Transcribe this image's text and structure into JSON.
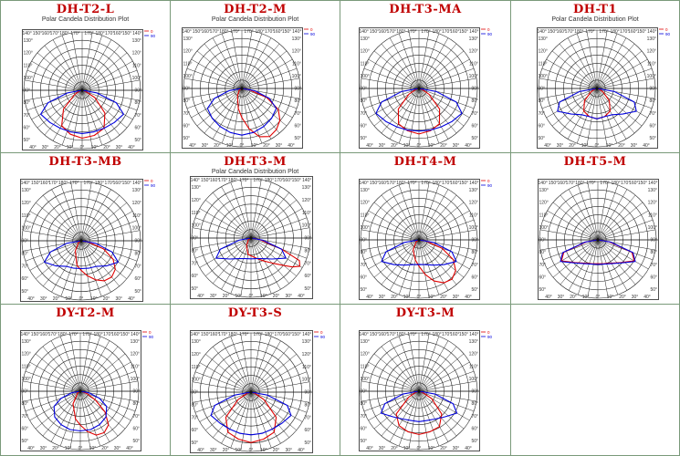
{
  "page": {
    "border_color": "#7a9a7a",
    "title_color": "#c00000"
  },
  "colors": {
    "series0": "#e00000",
    "series90": "#0000dd",
    "grid": "#222222"
  },
  "angle_labels": [
    "180°",
    "170°",
    "160°",
    "150°",
    "140°",
    "130°",
    "120°",
    "110°",
    "100°",
    "90°",
    "80°",
    "70°",
    "60°",
    "50°",
    "40°",
    "30°",
    "20°",
    "10°",
    "0°"
  ],
  "chart_data": [
    {
      "type": "polar",
      "name": "DH-T2-L",
      "title": "Polar Candela Distribution Plot",
      "legend": [
        "0",
        "90"
      ],
      "show_subtitle": true,
      "show_legend": true,
      "series": [
        {
          "name": "0",
          "color": "#e00000",
          "angles": [
            -90,
            -75,
            -60,
            -45,
            -30,
            -15,
            0,
            15,
            30,
            45,
            60,
            75,
            90
          ],
          "values": [
            0,
            0.05,
            0.15,
            0.45,
            0.7,
            0.78,
            0.82,
            0.8,
            0.75,
            0.55,
            0.25,
            0.05,
            0
          ]
        },
        {
          "name": "90",
          "color": "#0000dd",
          "angles": [
            -90,
            -80,
            -70,
            -60,
            -45,
            -30,
            -15,
            0,
            15,
            30,
            45,
            60,
            70,
            80,
            90
          ],
          "values": [
            0,
            0.25,
            0.62,
            0.82,
            0.78,
            0.75,
            0.74,
            0.74,
            0.74,
            0.75,
            0.78,
            0.82,
            0.62,
            0.25,
            0
          ]
        }
      ]
    },
    {
      "type": "polar",
      "name": "DH-T2-M",
      "title": "Polar Candela Distribution Plot",
      "legend": [
        "0",
        "90"
      ],
      "show_subtitle": true,
      "show_legend": true,
      "series": [
        {
          "name": "0",
          "color": "#e00000",
          "angles": [
            -90,
            -60,
            -30,
            -10,
            0,
            10,
            20,
            30,
            40,
            50,
            60,
            70,
            80,
            90
          ],
          "values": [
            0,
            0.05,
            0.15,
            0.35,
            0.5,
            0.7,
            0.88,
            0.95,
            0.92,
            0.85,
            0.72,
            0.45,
            0.12,
            0
          ]
        },
        {
          "name": "90",
          "color": "#0000dd",
          "angles": [
            -90,
            -80,
            -70,
            -60,
            -45,
            -30,
            -15,
            0,
            15,
            30,
            45,
            60,
            70,
            80,
            90
          ],
          "values": [
            0,
            0.22,
            0.5,
            0.68,
            0.72,
            0.75,
            0.78,
            0.8,
            0.78,
            0.75,
            0.72,
            0.68,
            0.5,
            0.22,
            0
          ]
        }
      ]
    },
    {
      "type": "polar",
      "name": "DH-T3-MA",
      "title": "",
      "legend": [
        "0",
        "90"
      ],
      "show_subtitle": false,
      "show_legend": true,
      "series": [
        {
          "name": "0",
          "color": "#e00000",
          "angles": [
            -90,
            -75,
            -60,
            -45,
            -30,
            -15,
            0,
            15,
            30,
            45,
            60,
            75,
            90
          ],
          "values": [
            0,
            0.05,
            0.2,
            0.5,
            0.7,
            0.75,
            0.78,
            0.75,
            0.7,
            0.5,
            0.2,
            0.05,
            0
          ]
        },
        {
          "name": "90",
          "color": "#0000dd",
          "angles": [
            -90,
            -80,
            -70,
            -60,
            -45,
            -30,
            -15,
            0,
            15,
            30,
            45,
            60,
            70,
            80,
            90
          ],
          "values": [
            0,
            0.3,
            0.68,
            0.85,
            0.8,
            0.76,
            0.74,
            0.73,
            0.74,
            0.76,
            0.8,
            0.85,
            0.68,
            0.3,
            0
          ]
        }
      ]
    },
    {
      "type": "polar",
      "name": "DH-T1",
      "title": "Polar Candela Distribution Plot",
      "legend": [
        "0",
        "90"
      ],
      "show_subtitle": true,
      "show_legend": true,
      "series": [
        {
          "name": "0",
          "color": "#e00000",
          "angles": [
            -90,
            -75,
            -60,
            -45,
            -30,
            -15,
            0,
            15,
            30,
            45,
            60,
            75,
            90
          ],
          "values": [
            0,
            0.04,
            0.12,
            0.3,
            0.45,
            0.5,
            0.52,
            0.5,
            0.45,
            0.3,
            0.12,
            0.04,
            0
          ]
        },
        {
          "name": "90",
          "color": "#0000dd",
          "angles": [
            -90,
            -80,
            -70,
            -60,
            -45,
            -30,
            -15,
            0,
            15,
            30,
            45,
            60,
            70,
            80,
            90
          ],
          "values": [
            0,
            0.3,
            0.68,
            0.78,
            0.62,
            0.52,
            0.5,
            0.52,
            0.5,
            0.52,
            0.62,
            0.78,
            0.68,
            0.3,
            0
          ]
        }
      ]
    },
    {
      "type": "polar",
      "name": "DH-T3-MB",
      "title": "",
      "legend": [
        "0",
        "90"
      ],
      "show_subtitle": false,
      "show_legend": true,
      "series": [
        {
          "name": "0",
          "color": "#e00000",
          "angles": [
            -90,
            -60,
            -30,
            -10,
            0,
            10,
            20,
            30,
            40,
            50,
            60,
            70,
            80,
            90
          ],
          "values": [
            0,
            0.05,
            0.2,
            0.42,
            0.5,
            0.6,
            0.7,
            0.78,
            0.8,
            0.75,
            0.62,
            0.4,
            0.12,
            0
          ]
        },
        {
          "name": "90",
          "color": "#0000dd",
          "angles": [
            -90,
            -80,
            -70,
            -60,
            -45,
            -30,
            -15,
            0,
            15,
            30,
            45,
            60,
            70,
            80,
            90
          ],
          "values": [
            0,
            0.25,
            0.55,
            0.72,
            0.6,
            0.5,
            0.48,
            0.47,
            0.48,
            0.5,
            0.6,
            0.72,
            0.55,
            0.25,
            0
          ]
        }
      ]
    },
    {
      "type": "polar",
      "name": "DH-T3-M",
      "title": "Polar Candela Distribution Plot",
      "legend": [
        "0",
        "90"
      ],
      "show_subtitle": true,
      "show_legend": false,
      "series": [
        {
          "name": "0",
          "color": "#e00000",
          "angles": [
            -90,
            -60,
            -30,
            -10,
            0,
            10,
            20,
            30,
            40,
            50,
            55,
            60,
            65,
            70,
            80,
            90
          ],
          "values": [
            0,
            0.05,
            0.15,
            0.28,
            0.3,
            0.33,
            0.38,
            0.45,
            0.55,
            0.72,
            0.85,
            0.95,
            0.9,
            0.55,
            0.15,
            0
          ]
        },
        {
          "name": "90",
          "color": "#0000dd",
          "angles": [
            -90,
            -80,
            -70,
            -60,
            -45,
            -30,
            -15,
            0,
            15,
            30,
            45,
            60,
            70,
            80,
            90
          ],
          "values": [
            0,
            0.2,
            0.55,
            0.68,
            0.5,
            0.4,
            0.36,
            0.35,
            0.36,
            0.4,
            0.5,
            0.68,
            0.55,
            0.2,
            0
          ]
        }
      ]
    },
    {
      "type": "polar",
      "name": "DH-T4-M",
      "title": "",
      "legend": [
        "0",
        "90"
      ],
      "show_subtitle": false,
      "show_legend": true,
      "series": [
        {
          "name": "0",
          "color": "#e00000",
          "angles": [
            -90,
            -60,
            -30,
            -10,
            0,
            10,
            20,
            30,
            40,
            50,
            60,
            70,
            80,
            90
          ],
          "values": [
            0,
            0.05,
            0.2,
            0.35,
            0.45,
            0.6,
            0.75,
            0.85,
            0.88,
            0.82,
            0.68,
            0.42,
            0.12,
            0
          ]
        },
        {
          "name": "90",
          "color": "#0000dd",
          "angles": [
            -90,
            -80,
            -70,
            -60,
            -45,
            -30,
            -15,
            0,
            15,
            30,
            45,
            60,
            70,
            80,
            90
          ],
          "values": [
            0,
            0.25,
            0.6,
            0.74,
            0.6,
            0.5,
            0.44,
            0.42,
            0.44,
            0.5,
            0.6,
            0.74,
            0.6,
            0.25,
            0
          ]
        }
      ]
    },
    {
      "type": "polar",
      "name": "DH-T5-M",
      "title": "",
      "legend": [
        "0",
        "90"
      ],
      "show_subtitle": false,
      "show_legend": false,
      "series": [
        {
          "name": "0",
          "color": "#e00000",
          "angles": [
            -90,
            -80,
            -70,
            -60,
            -45,
            -30,
            -15,
            0,
            15,
            30,
            45,
            60,
            70,
            80,
            90
          ],
          "values": [
            0,
            0.2,
            0.62,
            0.72,
            0.55,
            0.46,
            0.42,
            0.41,
            0.42,
            0.46,
            0.55,
            0.72,
            0.62,
            0.2,
            0
          ]
        },
        {
          "name": "90",
          "color": "#0000dd",
          "angles": [
            -90,
            -80,
            -70,
            -60,
            -45,
            -30,
            -15,
            0,
            15,
            30,
            45,
            60,
            70,
            80,
            90
          ],
          "values": [
            0,
            0.22,
            0.64,
            0.74,
            0.56,
            0.47,
            0.43,
            0.42,
            0.43,
            0.47,
            0.56,
            0.74,
            0.64,
            0.22,
            0
          ]
        }
      ]
    },
    {
      "type": "polar",
      "name": "DY-T2-M",
      "title": "",
      "legend": [
        "0",
        "90"
      ],
      "show_subtitle": false,
      "show_legend": true,
      "series": [
        {
          "name": "0",
          "color": "#e00000",
          "angles": [
            -90,
            -60,
            -30,
            -10,
            0,
            10,
            20,
            30,
            40,
            50,
            60,
            70,
            80,
            90
          ],
          "values": [
            0,
            0.05,
            0.25,
            0.48,
            0.58,
            0.7,
            0.8,
            0.82,
            0.75,
            0.55,
            0.3,
            0.12,
            0.03,
            0
          ]
        },
        {
          "name": "90",
          "color": "#0000dd",
          "angles": [
            -90,
            -80,
            -70,
            -60,
            -45,
            -30,
            -15,
            0,
            15,
            30,
            45,
            60,
            70,
            80,
            90
          ],
          "values": [
            0,
            0.15,
            0.35,
            0.52,
            0.62,
            0.66,
            0.68,
            0.68,
            0.68,
            0.66,
            0.62,
            0.52,
            0.35,
            0.15,
            0
          ]
        }
      ]
    },
    {
      "type": "polar",
      "name": "DY-T3-S",
      "title": "",
      "legend": [
        "0",
        "90"
      ],
      "show_subtitle": false,
      "show_legend": true,
      "series": [
        {
          "name": "0",
          "color": "#e00000",
          "angles": [
            -90,
            -75,
            -60,
            -45,
            -30,
            -15,
            0,
            15,
            30,
            45,
            60,
            75,
            90
          ],
          "values": [
            0,
            0.06,
            0.25,
            0.6,
            0.78,
            0.82,
            0.85,
            0.82,
            0.78,
            0.6,
            0.25,
            0.06,
            0
          ]
        },
        {
          "name": "90",
          "color": "#0000dd",
          "angles": [
            -90,
            -80,
            -70,
            -60,
            -45,
            -30,
            -15,
            0,
            15,
            30,
            45,
            60,
            70,
            80,
            90
          ],
          "values": [
            0,
            0.28,
            0.65,
            0.78,
            0.74,
            0.72,
            0.72,
            0.72,
            0.72,
            0.72,
            0.74,
            0.78,
            0.65,
            0.28,
            0
          ]
        }
      ]
    },
    {
      "type": "polar",
      "name": "DY-T3-M",
      "title": "",
      "legend": [
        "0",
        "90"
      ],
      "show_subtitle": false,
      "show_legend": true,
      "series": [
        {
          "name": "0",
          "color": "#e00000",
          "angles": [
            -90,
            -75,
            -60,
            -45,
            -30,
            -15,
            0,
            15,
            30,
            45,
            60,
            75,
            90
          ],
          "values": [
            0,
            0.05,
            0.2,
            0.55,
            0.68,
            0.72,
            0.74,
            0.72,
            0.7,
            0.55,
            0.25,
            0.05,
            0
          ]
        },
        {
          "name": "90",
          "color": "#0000dd",
          "angles": [
            -90,
            -80,
            -70,
            -60,
            -45,
            -30,
            -15,
            0,
            15,
            30,
            45,
            60,
            70,
            80,
            90
          ],
          "values": [
            0,
            0.28,
            0.62,
            0.75,
            0.62,
            0.55,
            0.52,
            0.52,
            0.52,
            0.55,
            0.62,
            0.75,
            0.62,
            0.28,
            0
          ]
        }
      ]
    }
  ]
}
